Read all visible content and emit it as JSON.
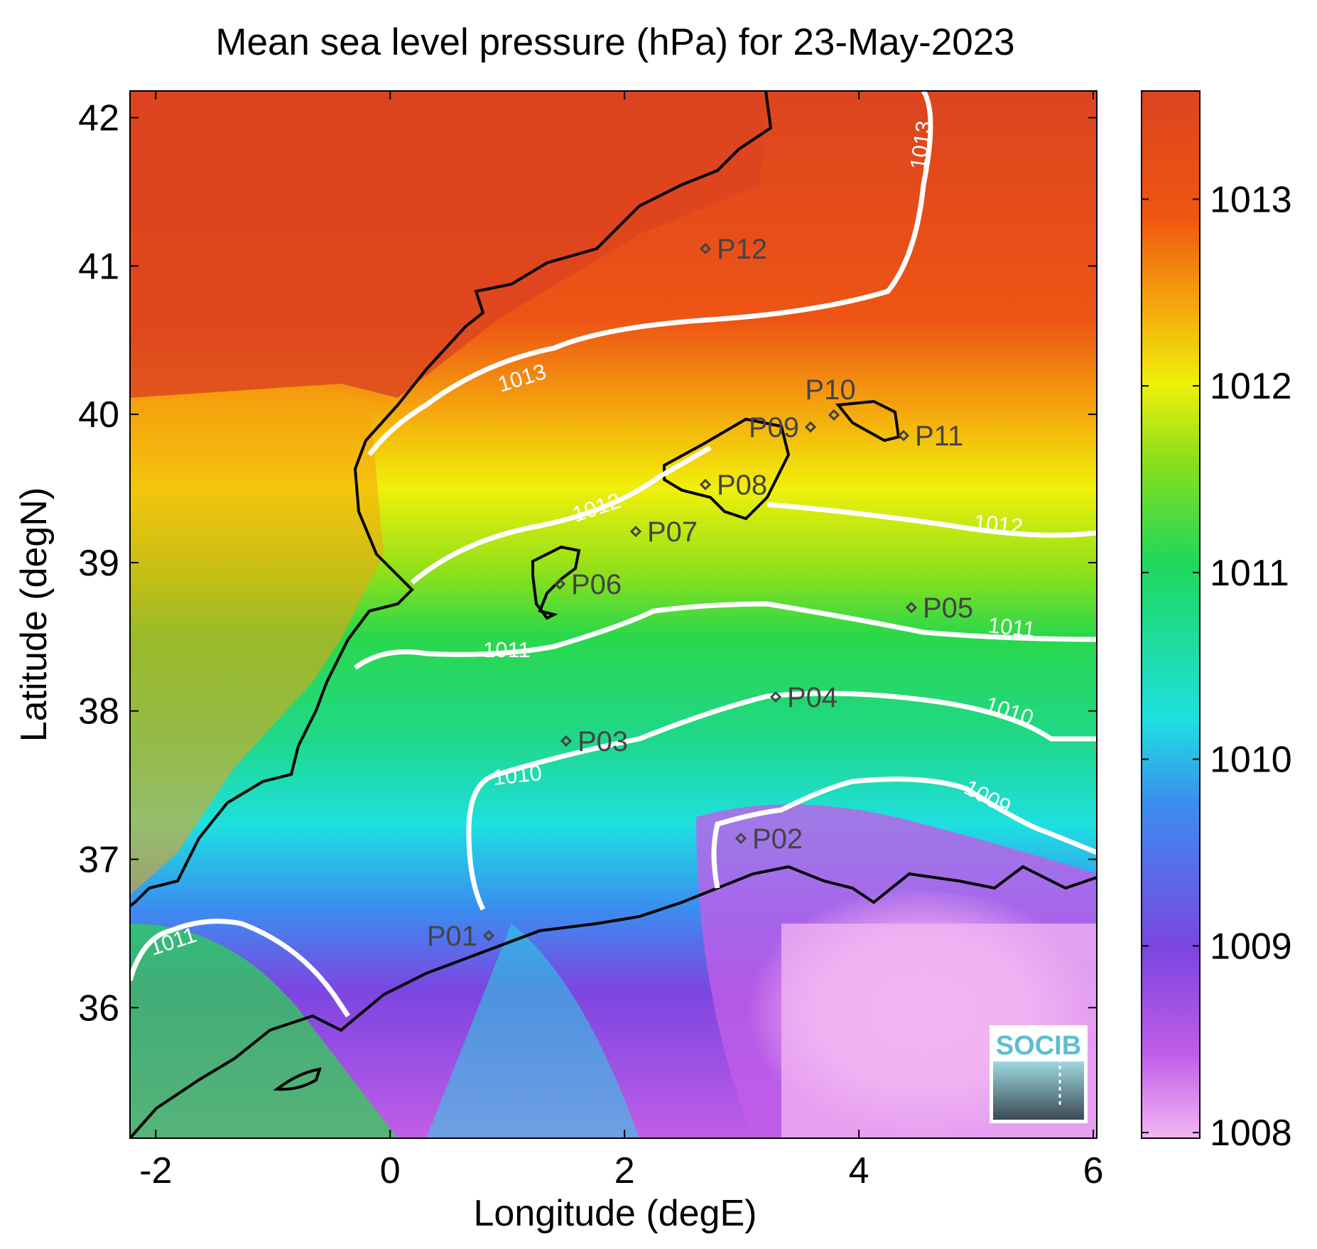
{
  "title": "Mean sea level pressure (hPa) for 23-May-2023",
  "xlabel": "Longitude (degE)",
  "ylabel": "Latitude (degN)",
  "x_ticks": [
    "-2",
    "0",
    "2",
    "4",
    "6"
  ],
  "y_ticks": [
    "36",
    "37",
    "38",
    "39",
    "40",
    "41",
    "42"
  ],
  "colorbar": {
    "ticks": [
      "1008",
      "1009",
      "1010",
      "1011",
      "1012",
      "1013"
    ],
    "stops": [
      "#f3b6f3",
      "#c05ee8",
      "#7d45e0",
      "#3a8ef0",
      "#1ee0e0",
      "#1fd85a",
      "#8ee01a",
      "#f0f00a",
      "#f5a20e",
      "#f05510",
      "#dc4420"
    ]
  },
  "stations": [
    {
      "name": "P01"
    },
    {
      "name": "P02"
    },
    {
      "name": "P03"
    },
    {
      "name": "P04"
    },
    {
      "name": "P05"
    },
    {
      "name": "P06"
    },
    {
      "name": "P07"
    },
    {
      "name": "P08"
    },
    {
      "name": "P09"
    },
    {
      "name": "P10"
    },
    {
      "name": "P11"
    },
    {
      "name": "P12"
    }
  ],
  "contour_labels": {
    "c1009": "1009",
    "c1010": "1010",
    "c1011": "1011",
    "c1012": "1012",
    "c1013": "1013"
  },
  "logo": {
    "text": "SOCIB"
  },
  "colors": {
    "high": "#dc4420",
    "mid": "#1fd85a",
    "low": "#f3b6f3",
    "contour": "#ffffff",
    "coast": "#000000"
  }
}
